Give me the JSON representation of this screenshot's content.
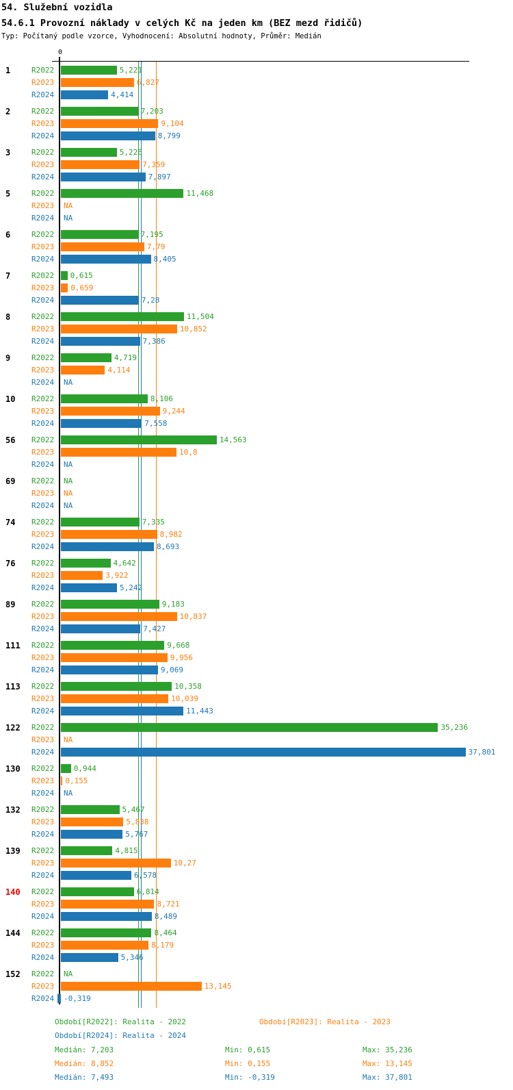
{
  "header": {
    "section_title": "54. Služební vozidla",
    "chart_title": "54.6.1 Provozní náklady v celých Kč na jeden km (BEZ mezd řidičů)",
    "subtitle": "Typ: Počítaný podle vzorce, Vyhodnocení: Absolutní hodnoty, Průměr: Medián"
  },
  "chart_data": {
    "type": "bar",
    "orientation": "horizontal",
    "axis_zero_label": "0",
    "grid": "off",
    "xlim": [
      -0.5,
      41
    ],
    "highlight_color": "#ee0000",
    "series": [
      {
        "name": "R2022",
        "color": "#2ca02c",
        "median": 7.203,
        "min": 0.615,
        "max": 35.236
      },
      {
        "name": "R2023",
        "color": "#ff7f0e",
        "median": 8.852,
        "min": 0.155,
        "max": 13.145
      },
      {
        "name": "R2024",
        "color": "#1f77b4",
        "median": 7.493,
        "min": -0.319,
        "max": 37.801
      }
    ],
    "median_reference_lines": [
      {
        "series": "R2022",
        "value": 7.203,
        "color": "#2ca02c"
      },
      {
        "series": "R2024",
        "value": 7.493,
        "color": "#1f77b4"
      },
      {
        "series": "R2023",
        "value": 8.852,
        "color": "#ff7f0e"
      }
    ],
    "groups": [
      {
        "id": "1",
        "highlight": false,
        "values": [
          5.221,
          6.827,
          4.414
        ],
        "display": [
          "5,221",
          "6,827",
          "4,414"
        ]
      },
      {
        "id": "2",
        "highlight": false,
        "values": [
          7.203,
          9.104,
          8.799
        ],
        "display": [
          "7,203",
          "9,104",
          "8,799"
        ]
      },
      {
        "id": "3",
        "highlight": false,
        "values": [
          5.226,
          7.359,
          7.897
        ],
        "display": [
          "5,226",
          "7,359",
          "7,897"
        ]
      },
      {
        "id": "5",
        "highlight": false,
        "values": [
          11.468,
          null,
          null
        ],
        "display": [
          "11,468",
          "NA",
          "NA"
        ]
      },
      {
        "id": "6",
        "highlight": false,
        "values": [
          7.195,
          7.79,
          8.405
        ],
        "display": [
          "7,195",
          "7,79",
          "8,405"
        ]
      },
      {
        "id": "7",
        "highlight": false,
        "values": [
          0.615,
          0.659,
          7.28
        ],
        "display": [
          "0,615",
          "0,659",
          "7,28"
        ]
      },
      {
        "id": "8",
        "highlight": false,
        "values": [
          11.504,
          10.852,
          7.386
        ],
        "display": [
          "11,504",
          "10,852",
          "7,386"
        ]
      },
      {
        "id": "9",
        "highlight": false,
        "values": [
          4.719,
          4.114,
          null
        ],
        "display": [
          "4,719",
          "4,114",
          "NA"
        ]
      },
      {
        "id": "10",
        "highlight": false,
        "values": [
          8.106,
          9.244,
          7.558
        ],
        "display": [
          "8,106",
          "9,244",
          "7,558"
        ]
      },
      {
        "id": "56",
        "highlight": false,
        "values": [
          14.563,
          10.8,
          null
        ],
        "display": [
          "14,563",
          "10,8",
          "NA"
        ]
      },
      {
        "id": "69",
        "highlight": false,
        "values": [
          null,
          null,
          null
        ],
        "display": [
          "NA",
          "NA",
          "NA"
        ]
      },
      {
        "id": "74",
        "highlight": false,
        "values": [
          7.335,
          8.982,
          8.693
        ],
        "display": [
          "7,335",
          "8,982",
          "8,693"
        ]
      },
      {
        "id": "76",
        "highlight": false,
        "values": [
          4.642,
          3.922,
          5.242
        ],
        "display": [
          "4,642",
          "3,922",
          "5,242"
        ]
      },
      {
        "id": "89",
        "highlight": false,
        "values": [
          9.183,
          10.837,
          7.427
        ],
        "display": [
          "9,183",
          "10,837",
          "7,427"
        ]
      },
      {
        "id": "111",
        "highlight": false,
        "values": [
          9.668,
          9.956,
          9.069
        ],
        "display": [
          "9,668",
          "9,956",
          "9,069"
        ]
      },
      {
        "id": "113",
        "highlight": false,
        "values": [
          10.358,
          10.039,
          11.443
        ],
        "display": [
          "10,358",
          "10,039",
          "11,443"
        ]
      },
      {
        "id": "122",
        "highlight": false,
        "values": [
          35.236,
          null,
          37.801
        ],
        "display": [
          "35,236",
          "NA",
          "37,801"
        ]
      },
      {
        "id": "130",
        "highlight": false,
        "values": [
          0.944,
          0.155,
          null
        ],
        "display": [
          "0,944",
          "0,155",
          "NA"
        ]
      },
      {
        "id": "132",
        "highlight": false,
        "values": [
          5.467,
          5.838,
          5.767
        ],
        "display": [
          "5,467",
          "5,838",
          "5,767"
        ]
      },
      {
        "id": "139",
        "highlight": false,
        "values": [
          4.815,
          10.27,
          6.578
        ],
        "display": [
          "4,815",
          "10,27",
          "6,578"
        ]
      },
      {
        "id": "140",
        "highlight": true,
        "values": [
          6.814,
          8.721,
          8.489
        ],
        "display": [
          "6,814",
          "8,721",
          "8,489"
        ]
      },
      {
        "id": "144",
        "highlight": false,
        "values": [
          8.464,
          8.179,
          5.346
        ],
        "display": [
          "8,464",
          "8,179",
          "5,346"
        ]
      },
      {
        "id": "152",
        "highlight": false,
        "values": [
          null,
          13.145,
          -0.319
        ],
        "display": [
          "NA",
          "13,145",
          "-0,319"
        ]
      }
    ]
  },
  "footer": {
    "legend": [
      {
        "label": "Období[R2022]: Realita - 2022",
        "series": 0
      },
      {
        "label": "Období[R2023]: Realita - 2023",
        "series": 1
      },
      {
        "label": "Období[R2024]: Realita - 2024",
        "series": 2
      }
    ],
    "stats": [
      {
        "median": "Medián: 7,203",
        "min": "Min: 0,615",
        "max": "Max: 35,236",
        "series": 0
      },
      {
        "median": "Medián: 8,852",
        "min": "Min: 0,155",
        "max": "Max: 13,145",
        "series": 1
      },
      {
        "median": "Medián: 7,493",
        "min": "Min: -0,319",
        "max": "Max: 37,801",
        "series": 2
      }
    ]
  }
}
